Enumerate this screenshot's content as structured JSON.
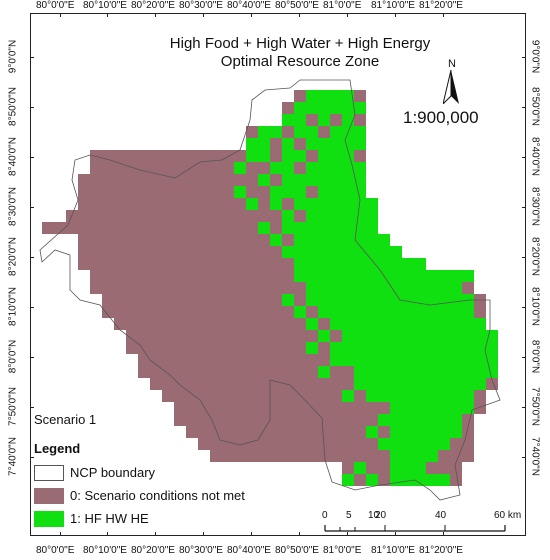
{
  "map": {
    "title_line1": "High Food + High Water + High Energy",
    "title_line2": "Optimal Resource Zone",
    "scale": "1:900,000",
    "north_label": "N",
    "scenario": "Scenario 1",
    "legend_title": "Legend",
    "legend": [
      {
        "label": "NCP boundary",
        "color": "#ffffff"
      },
      {
        "label": "0: Scenario conditions not met",
        "color": "#9b6b73"
      },
      {
        "label": "1: HF HW HE",
        "color": "#10e010"
      }
    ],
    "longitude_labels": [
      "80°0'0\"E",
      "80°10'0\"E",
      "80°20'0\"E",
      "80°30'0\"E",
      "80°40'0\"E",
      "80°50'0\"E",
      "81°0'0\"E",
      "81°10'0\"E",
      "81°20'0\"E"
    ],
    "latitude_labels": [
      "9°0'0\"N",
      "8°50'0\"N",
      "8°40'0\"N",
      "8°30'0\"N",
      "8°20'0\"N",
      "8°10'0\"N",
      "8°0'0\"N",
      "7°50'0\"N",
      "7°40'0\"N"
    ],
    "scalebar_labels": [
      "0",
      "5",
      "10",
      "20",
      "40",
      "60 km"
    ],
    "colors": {
      "not_met": "#9b6b73",
      "met": "#10e010",
      "boundary": "#555555"
    }
  }
}
